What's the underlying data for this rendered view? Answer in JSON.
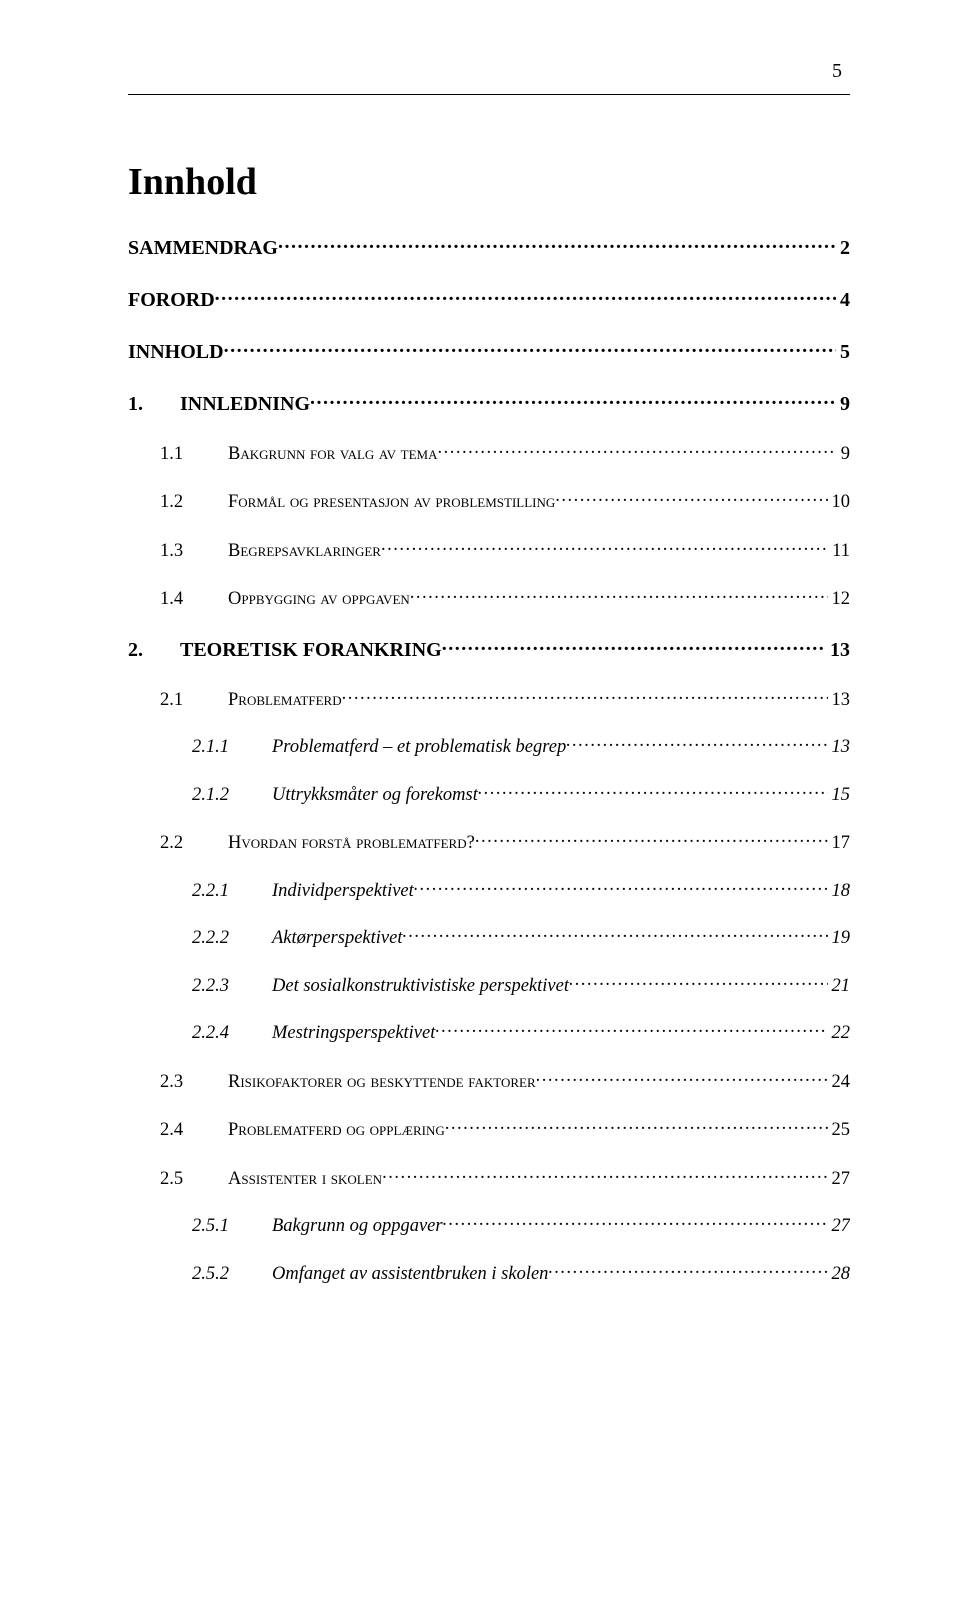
{
  "page_number": "5",
  "title": "Innhold",
  "colors": {
    "text": "#000000",
    "background": "#ffffff",
    "rule": "#000000"
  },
  "fonts": {
    "family": "Times New Roman",
    "title_size_pt": 28,
    "l1_size_pt": 15,
    "l2_size_pt": 14,
    "l3_size_pt": 14
  },
  "entries": [
    {
      "level": 1,
      "section": "",
      "label": "SAMMENDRAG",
      "page": "2"
    },
    {
      "level": 1,
      "section": "",
      "label": "FORORD",
      "page": "4"
    },
    {
      "level": 1,
      "section": "",
      "label": "INNHOLD",
      "page": "5"
    },
    {
      "level": 1,
      "section": "1.",
      "label": "INNLEDNING",
      "page": "9"
    },
    {
      "level": 2,
      "section": "1.1",
      "label": "Bakgrunn for valg av tema",
      "page": "9"
    },
    {
      "level": 2,
      "section": "1.2",
      "label": "Formål og presentasjon av problemstilling",
      "page": "10"
    },
    {
      "level": 2,
      "section": "1.3",
      "label": "Begrepsavklaringer",
      "page": "11"
    },
    {
      "level": 2,
      "section": "1.4",
      "label": "Oppbygging av oppgaven",
      "page": "12"
    },
    {
      "level": 1,
      "section": "2.",
      "label": "TEORETISK FORANKRING",
      "page": "13"
    },
    {
      "level": 2,
      "section": "2.1",
      "label": "Problematferd",
      "page": "13"
    },
    {
      "level": 3,
      "section": "2.1.1",
      "label": "Problematferd – et problematisk begrep",
      "page": "13"
    },
    {
      "level": 3,
      "section": "2.1.2",
      "label": "Uttrykksmåter og forekomst",
      "page": "15"
    },
    {
      "level": 2,
      "section": "2.2",
      "label": "Hvordan forstå problematferd?",
      "page": "17"
    },
    {
      "level": 3,
      "section": "2.2.1",
      "label": "Individperspektivet",
      "page": "18"
    },
    {
      "level": 3,
      "section": "2.2.2",
      "label": "Aktørperspektivet",
      "page": "19"
    },
    {
      "level": 3,
      "section": "2.2.3",
      "label": "Det sosialkonstruktivistiske perspektivet",
      "page": "21"
    },
    {
      "level": 3,
      "section": "2.2.4",
      "label": "Mestringsperspektivet",
      "page": "22"
    },
    {
      "level": 2,
      "section": "2.3",
      "label": "Risikofaktorer og beskyttende faktorer",
      "page": "24"
    },
    {
      "level": 2,
      "section": "2.4",
      "label": "Problematferd og opplæring",
      "page": "25"
    },
    {
      "level": 2,
      "section": "2.5",
      "label": "Assistenter i skolen",
      "page": "27"
    },
    {
      "level": 3,
      "section": "2.5.1",
      "label": "Bakgrunn og oppgaver",
      "page": "27"
    },
    {
      "level": 3,
      "section": "2.5.2",
      "label": "Omfanget av assistentbruken i skolen",
      "page": "28"
    }
  ]
}
